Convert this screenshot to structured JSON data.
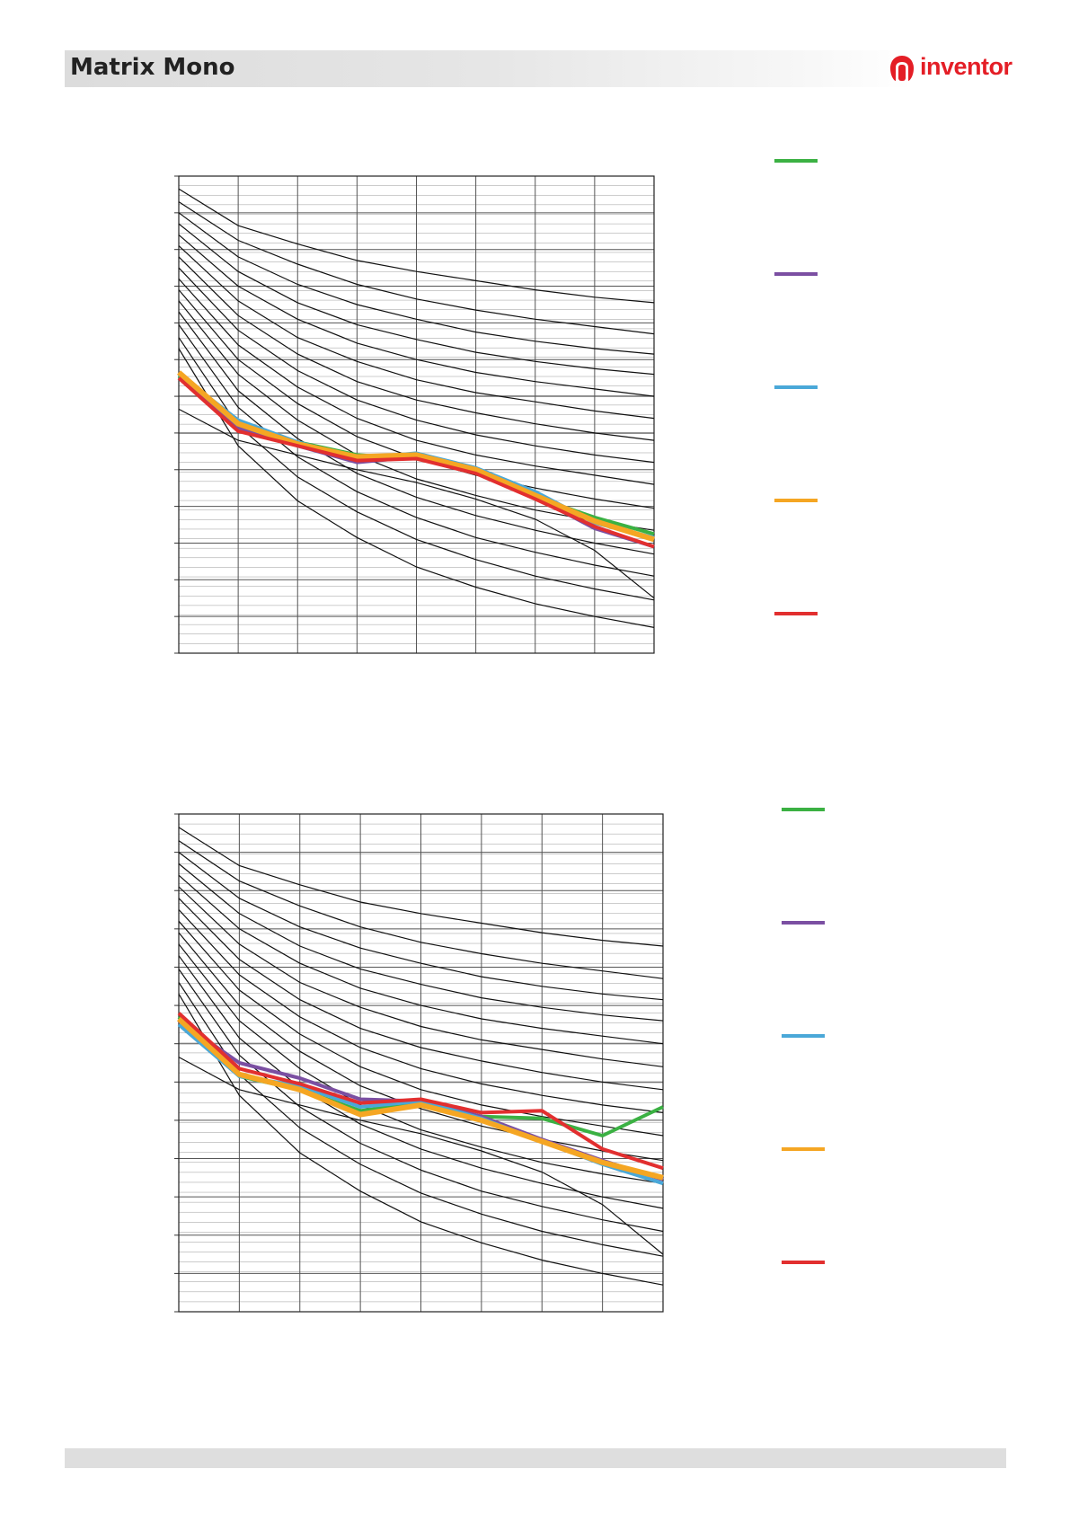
{
  "header": {
    "title": "Matrix Mono"
  },
  "logo": {
    "text": "inventor",
    "mark": "inventor-figure-logo",
    "color": "#e41e26"
  },
  "colors": {
    "green": "#3bb143",
    "purple": "#7b4fa2",
    "blue": "#4aa8d8",
    "orange": "#f5a623",
    "red": "#e22f2f"
  },
  "chart_data": [
    {
      "type": "line",
      "title": "",
      "xlabel": "",
      "ylabel": "",
      "grid": true,
      "legend_position": "right",
      "x": [
        0,
        1,
        2,
        3,
        4,
        5,
        6,
        7,
        8
      ],
      "xlim": [
        0,
        8
      ],
      "ylim": [
        0,
        26
      ],
      "reference_curves": [
        [
          25.3,
          23.3,
          22.3,
          21.4,
          20.8,
          20.3,
          19.8,
          19.4,
          19.1
        ],
        [
          24.6,
          22.5,
          21.2,
          20.1,
          19.3,
          18.7,
          18.2,
          17.8,
          17.4
        ],
        [
          24.0,
          21.6,
          20.1,
          19.0,
          18.2,
          17.5,
          17.0,
          16.6,
          16.3
        ],
        [
          23.4,
          20.8,
          19.1,
          17.9,
          17.1,
          16.4,
          15.9,
          15.5,
          15.2
        ],
        [
          22.8,
          20.0,
          18.2,
          16.9,
          16.0,
          15.3,
          14.8,
          14.4,
          14.0
        ],
        [
          22.2,
          19.2,
          17.2,
          15.9,
          14.9,
          14.2,
          13.7,
          13.2,
          12.8
        ],
        [
          21.6,
          18.4,
          16.3,
          14.8,
          13.8,
          13.1,
          12.5,
          12.0,
          11.6
        ],
        [
          21.0,
          17.6,
          15.4,
          13.8,
          12.7,
          11.9,
          11.3,
          10.8,
          10.4
        ],
        [
          20.4,
          16.8,
          14.5,
          12.8,
          11.6,
          10.8,
          10.2,
          9.7,
          9.2
        ],
        [
          19.8,
          16.0,
          13.6,
          11.8,
          10.6,
          9.7,
          9.0,
          8.4,
          7.9
        ],
        [
          19.2,
          15.2,
          12.7,
          10.8,
          9.5,
          8.6,
          7.8,
          7.2,
          6.7
        ],
        [
          18.6,
          14.3,
          11.7,
          9.8,
          8.5,
          7.5,
          6.7,
          6.0,
          5.4
        ],
        [
          17.9,
          13.4,
          10.7,
          8.8,
          7.4,
          6.3,
          5.5,
          4.8,
          4.2
        ],
        [
          17.2,
          12.4,
          9.6,
          7.7,
          6.2,
          5.1,
          4.2,
          3.5,
          2.9
        ],
        [
          16.6,
          11.3,
          8.3,
          6.3,
          4.7,
          3.6,
          2.7,
          2.0,
          1.4
        ],
        [
          13.3,
          11.6,
          10.8,
          10.0,
          9.3,
          8.4,
          7.3,
          5.6,
          3.0
        ]
      ],
      "series": [
        {
          "color": "#3bb143",
          "values": [
            15.1,
            12.4,
            11.5,
            10.8,
            10.6,
            9.9,
            8.5,
            7.4,
            6.5
          ]
        },
        {
          "color": "#7b4fa2",
          "values": [
            15.0,
            12.3,
            11.3,
            10.4,
            10.7,
            9.9,
            8.5,
            6.8,
            5.8
          ]
        },
        {
          "color": "#4aa8d8",
          "values": [
            15.2,
            12.7,
            11.5,
            10.6,
            10.9,
            10.1,
            8.8,
            7.1,
            6.3
          ]
        },
        {
          "color": "#f5a623",
          "values": [
            15.3,
            12.5,
            11.4,
            10.7,
            10.8,
            10.0,
            8.6,
            7.2,
            6.2
          ]
        },
        {
          "color": "#e22f2f",
          "values": [
            15.0,
            12.1,
            11.3,
            10.5,
            10.6,
            9.8,
            8.4,
            6.9,
            5.8
          ]
        }
      ]
    },
    {
      "type": "line",
      "title": "",
      "xlabel": "",
      "ylabel": "",
      "grid": true,
      "legend_position": "right",
      "x": [
        0,
        1,
        2,
        3,
        4,
        5,
        6,
        7,
        8
      ],
      "xlim": [
        0,
        8
      ],
      "ylim": [
        0,
        26
      ],
      "reference_curves": [
        [
          25.3,
          23.3,
          22.3,
          21.4,
          20.8,
          20.3,
          19.8,
          19.4,
          19.1
        ],
        [
          24.6,
          22.5,
          21.2,
          20.1,
          19.3,
          18.7,
          18.2,
          17.8,
          17.4
        ],
        [
          24.0,
          21.6,
          20.1,
          19.0,
          18.2,
          17.5,
          17.0,
          16.6,
          16.3
        ],
        [
          23.4,
          20.8,
          19.1,
          17.9,
          17.1,
          16.4,
          15.9,
          15.5,
          15.2
        ],
        [
          22.8,
          20.0,
          18.2,
          16.9,
          16.0,
          15.3,
          14.8,
          14.4,
          14.0
        ],
        [
          22.2,
          19.2,
          17.2,
          15.9,
          14.9,
          14.2,
          13.7,
          13.2,
          12.8
        ],
        [
          21.6,
          18.4,
          16.3,
          14.8,
          13.8,
          13.1,
          12.5,
          12.0,
          11.6
        ],
        [
          21.0,
          17.6,
          15.4,
          13.8,
          12.7,
          11.9,
          11.3,
          10.8,
          10.4
        ],
        [
          20.4,
          16.8,
          14.5,
          12.8,
          11.6,
          10.8,
          10.2,
          9.7,
          9.2
        ],
        [
          19.8,
          16.0,
          13.6,
          11.8,
          10.6,
          9.7,
          9.0,
          8.4,
          7.9
        ],
        [
          19.2,
          15.2,
          12.7,
          10.8,
          9.5,
          8.6,
          7.8,
          7.2,
          6.7
        ],
        [
          18.6,
          14.3,
          11.7,
          9.8,
          8.5,
          7.5,
          6.7,
          6.0,
          5.4
        ],
        [
          17.9,
          13.4,
          10.7,
          8.8,
          7.4,
          6.3,
          5.5,
          4.8,
          4.2
        ],
        [
          17.2,
          12.4,
          9.6,
          7.7,
          6.2,
          5.1,
          4.2,
          3.5,
          2.9
        ],
        [
          16.6,
          11.3,
          8.3,
          6.3,
          4.7,
          3.6,
          2.7,
          2.0,
          1.4
        ],
        [
          13.3,
          11.6,
          10.8,
          10.0,
          9.3,
          8.4,
          7.3,
          5.6,
          3.0
        ]
      ],
      "series": [
        {
          "color": "#3bb143",
          "values": [
            15.4,
            12.3,
            11.6,
            10.5,
            10.9,
            10.2,
            10.1,
            9.2,
            10.7
          ]
        },
        {
          "color": "#7b4fa2",
          "values": [
            15.2,
            13.0,
            12.2,
            11.1,
            11.0,
            10.2,
            9.0,
            7.9,
            6.9
          ]
        },
        {
          "color": "#4aa8d8",
          "values": [
            15.0,
            12.3,
            11.8,
            10.7,
            11.0,
            10.1,
            8.9,
            7.7,
            6.7
          ]
        },
        {
          "color": "#f5a623",
          "values": [
            15.3,
            12.4,
            11.6,
            10.3,
            10.8,
            10.0,
            8.9,
            7.8,
            7.0
          ]
        },
        {
          "color": "#e22f2f",
          "values": [
            15.6,
            12.7,
            11.9,
            10.9,
            11.1,
            10.4,
            10.5,
            8.5,
            7.5
          ]
        }
      ]
    }
  ]
}
